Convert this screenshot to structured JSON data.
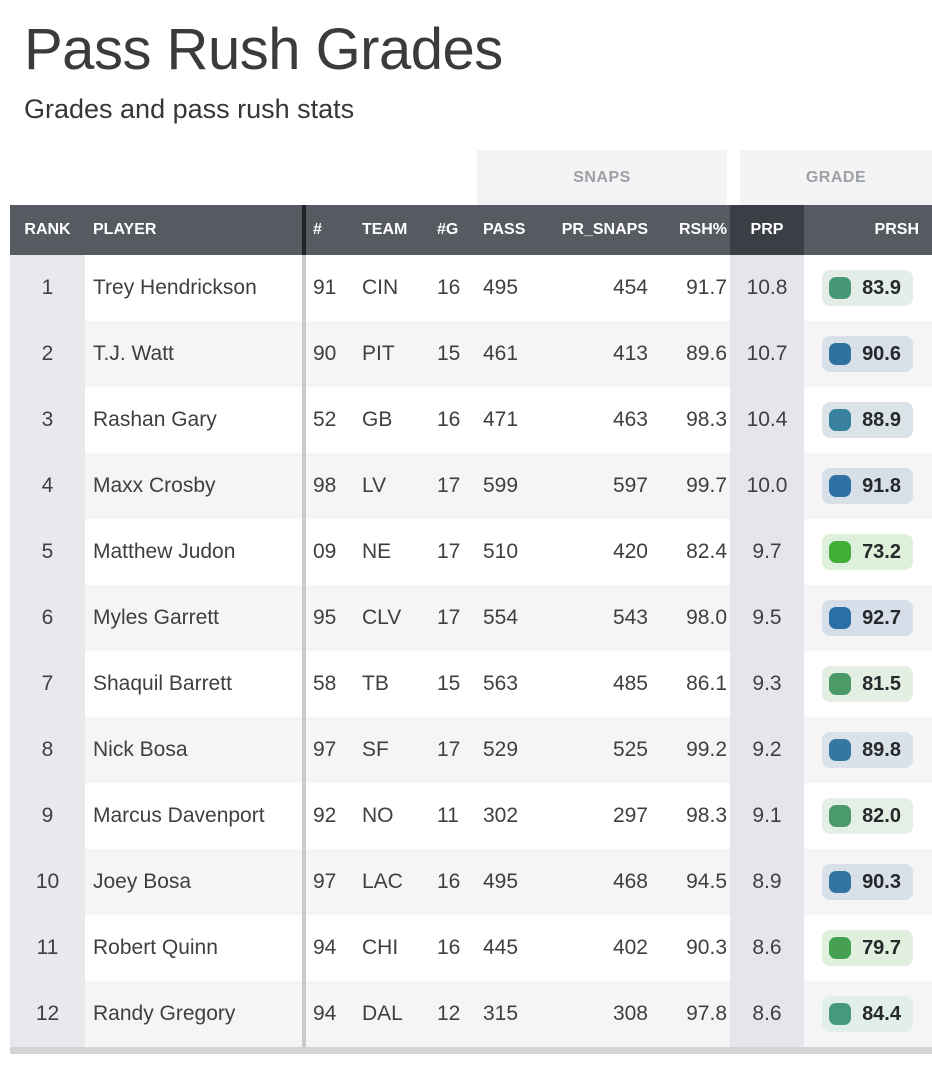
{
  "page": {
    "title": "Pass Rush Grades",
    "subtitle": "Grades and pass rush stats"
  },
  "table": {
    "group_headers": {
      "snaps": "SNAPS",
      "grade": "GRADE"
    },
    "columns": [
      "RANK",
      "PLAYER",
      "#",
      "TEAM",
      "#G",
      "PASS",
      "PR_SNAPS",
      "RSH%",
      "PRP",
      "PRSH"
    ],
    "colors": {
      "header_bg": "#565b62",
      "sorted_header_bg": "#3a3e45",
      "header_text": "#ffffff",
      "group_header_bg": "#f4f4f5",
      "group_header_text": "#9ba0a6",
      "rank_column_bg": "#e7e9ec",
      "prp_column_bg": "#e4e6ec",
      "row_bg": "#ffffff",
      "row_alt_bg": "#f5f5f6",
      "body_text": "#3d3f42",
      "divider_header": "#212429",
      "divider_body": "#c8cacc",
      "bottom_bar": "#d3d4d5"
    },
    "rows": [
      {
        "rank": "1",
        "player": "Trey Hendrickson",
        "jersey": "91",
        "team": "CIN",
        "games": "16",
        "pass": "495",
        "pr_snaps": "454",
        "rsh_pct": "91.7",
        "prp": "10.8",
        "prsh": "83.9",
        "grade_color": "#479878",
        "grade_bg": "#e3eee8"
      },
      {
        "rank": "2",
        "player": "T.J. Watt",
        "jersey": "90",
        "team": "PIT",
        "games": "15",
        "pass": "461",
        "pr_snaps": "413",
        "rsh_pct": "89.6",
        "prp": "10.7",
        "prsh": "90.6",
        "grade_color": "#2f72a2",
        "grade_bg": "#d8e1e9"
      },
      {
        "rank": "3",
        "player": "Rashan Gary",
        "jersey": "52",
        "team": "GB",
        "games": "16",
        "pass": "471",
        "pr_snaps": "463",
        "rsh_pct": "98.3",
        "prp": "10.4",
        "prsh": "88.9",
        "grade_color": "#38809b",
        "grade_bg": "#dae4e8"
      },
      {
        "rank": "4",
        "player": "Maxx Crosby",
        "jersey": "98",
        "team": "LV",
        "games": "17",
        "pass": "599",
        "pr_snaps": "597",
        "rsh_pct": "99.7",
        "prp": "10.0",
        "prsh": "91.8",
        "grade_color": "#2d71a5",
        "grade_bg": "#d7e0e9"
      },
      {
        "rank": "5",
        "player": "Matthew Judon",
        "jersey": "09",
        "team": "NE",
        "games": "17",
        "pass": "510",
        "pr_snaps": "420",
        "rsh_pct": "82.4",
        "prp": "9.7",
        "prsh": "73.2",
        "grade_color": "#3fad36",
        "grade_bg": "#def0da"
      },
      {
        "rank": "6",
        "player": "Myles Garrett",
        "jersey": "95",
        "team": "CLV",
        "games": "17",
        "pass": "554",
        "pr_snaps": "543",
        "rsh_pct": "98.0",
        "prp": "9.5",
        "prsh": "92.7",
        "grade_color": "#2b6fa7",
        "grade_bg": "#d6dfe9"
      },
      {
        "rank": "7",
        "player": "Shaquil Barrett",
        "jersey": "58",
        "team": "TB",
        "games": "15",
        "pass": "563",
        "pr_snaps": "485",
        "rsh_pct": "86.1",
        "prp": "9.3",
        "prsh": "81.5",
        "grade_color": "#4c9a66",
        "grade_bg": "#e4efe4"
      },
      {
        "rank": "8",
        "player": "Nick Bosa",
        "jersey": "97",
        "team": "SF",
        "games": "17",
        "pass": "529",
        "pr_snaps": "525",
        "rsh_pct": "99.2",
        "prp": "9.2",
        "prsh": "89.8",
        "grade_color": "#34789f",
        "grade_bg": "#d9e2e9"
      },
      {
        "rank": "9",
        "player": "Marcus Davenport",
        "jersey": "92",
        "team": "NO",
        "games": "11",
        "pass": "302",
        "pr_snaps": "297",
        "rsh_pct": "98.3",
        "prp": "9.1",
        "prsh": "82.0",
        "grade_color": "#4b9a6c",
        "grade_bg": "#e4efe5"
      },
      {
        "rank": "10",
        "player": "Joey Bosa",
        "jersey": "97",
        "team": "LAC",
        "games": "16",
        "pass": "495",
        "pr_snaps": "468",
        "rsh_pct": "94.5",
        "prp": "8.9",
        "prsh": "90.3",
        "grade_color": "#3174a1",
        "grade_bg": "#d8e1e9"
      },
      {
        "rank": "11",
        "player": "Robert Quinn",
        "jersey": "94",
        "team": "CHI",
        "games": "16",
        "pass": "445",
        "pr_snaps": "402",
        "rsh_pct": "90.3",
        "prp": "8.6",
        "prsh": "79.7",
        "grade_color": "#47a052",
        "grade_bg": "#e1f0de"
      },
      {
        "rank": "12",
        "player": "Randy Gregory",
        "jersey": "94",
        "team": "DAL",
        "games": "12",
        "pass": "315",
        "pr_snaps": "308",
        "rsh_pct": "97.8",
        "prp": "8.6",
        "prsh": "84.4",
        "grade_color": "#45997e",
        "grade_bg": "#e2eee9"
      }
    ]
  }
}
